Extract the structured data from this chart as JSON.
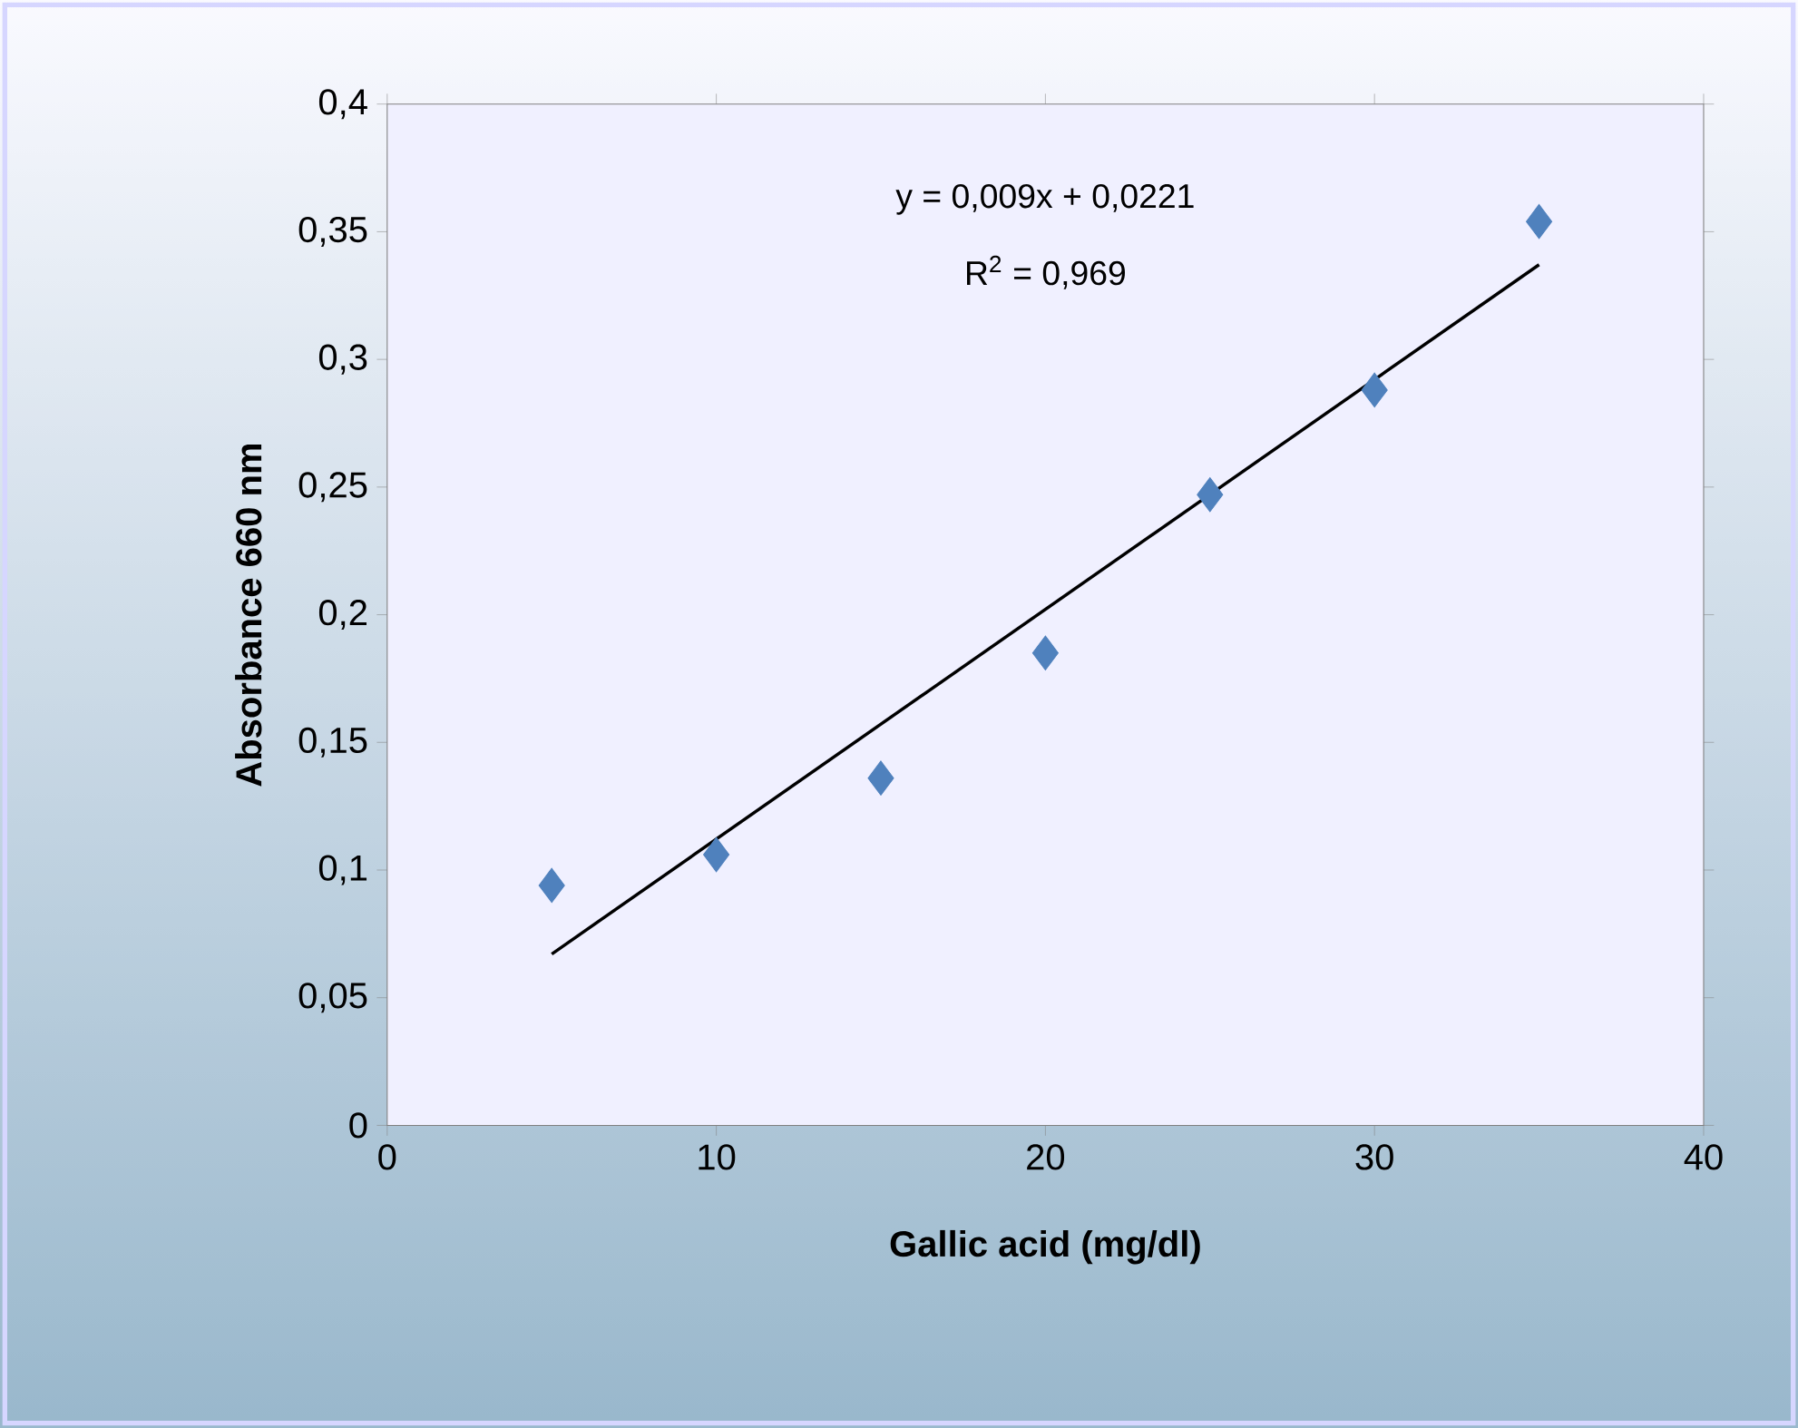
{
  "chart_data": {
    "type": "scatter",
    "xlabel": "Gallic acid (mg/dl)",
    "ylabel": "Absorbance 660 nm",
    "annotations": [
      "y = 0,009x + 0,0221",
      "R$^{2}$ = 0,969"
    ],
    "series": [
      {
        "color": "#4f81bd",
        "x": [
          5,
          10,
          15,
          20,
          25,
          30,
          35
        ],
        "values": [
          0.094,
          0.106,
          0.136,
          0.185,
          0.247,
          0.288,
          0.354
        ]
      },
      {
        "type": "line",
        "color": "#000000",
        "marker": "none",
        "x": [
          5,
          35
        ],
        "values": [
          0.0671,
          0.3371
        ]
      }
    ],
    "xlim": [
      0,
      40
    ],
    "xticks": [
      0,
      10,
      20,
      30,
      40
    ],
    "ylim": [
      0,
      0.4
    ],
    "yticks": [
      {
        "value": 0,
        "label": "0"
      },
      {
        "value": 0.05,
        "label": "0,05"
      },
      {
        "value": 0.1,
        "label": "0,1"
      },
      {
        "value": 0.15,
        "label": "0,15"
      },
      {
        "value": 0.2,
        "label": "0,2"
      },
      {
        "value": 0.25,
        "label": "0,25"
      },
      {
        "value": 0.3,
        "label": "0,3"
      },
      {
        "value": 0.35,
        "label": "0,35"
      },
      {
        "value": 0.4,
        "label": "0,4"
      }
    ],
    "marker": "diamond"
  }
}
